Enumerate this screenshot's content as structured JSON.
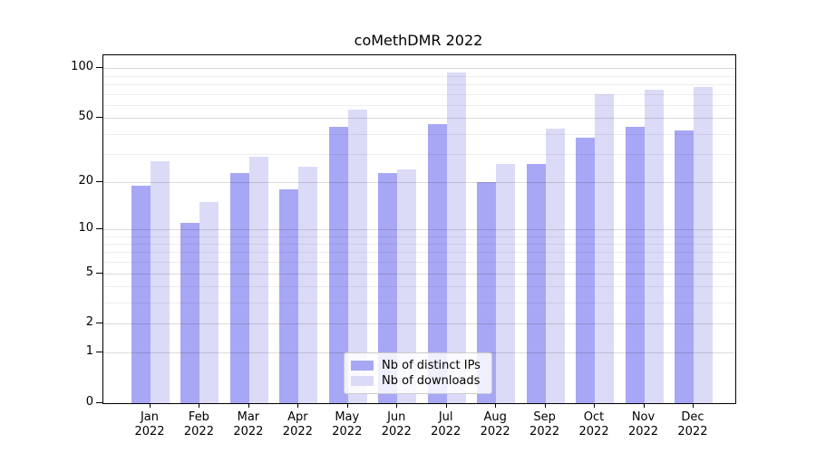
{
  "title": "coMethDMR 2022",
  "chart_data": {
    "type": "bar",
    "title": "coMethDMR 2022",
    "categories": [
      "Jan",
      "Feb",
      "Mar",
      "Apr",
      "May",
      "Jun",
      "Jul",
      "Aug",
      "Sep",
      "Oct",
      "Nov",
      "Dec"
    ],
    "year_label": "2022",
    "series": [
      {
        "name": "Nb of distinct IPs",
        "color": "#a7a7f5",
        "values": [
          19,
          11,
          23,
          18,
          44,
          23,
          46,
          20,
          26,
          38,
          44,
          42
        ]
      },
      {
        "name": "Nb of downloads",
        "color": "#dbdbf8",
        "values": [
          27,
          15,
          29,
          25,
          56,
          24,
          95,
          26,
          43,
          70,
          74,
          77
        ]
      }
    ],
    "xlabel": "",
    "ylabel": "",
    "yscale": "log1p",
    "ylim": [
      0,
      120
    ],
    "yticks_major": [
      0,
      1,
      2,
      5,
      10,
      20,
      50,
      100
    ],
    "yticks_minor": [
      3,
      4,
      6,
      7,
      8,
      9,
      30,
      40,
      60,
      70,
      80,
      90
    ],
    "grid": true,
    "legend_position": "lower center"
  }
}
